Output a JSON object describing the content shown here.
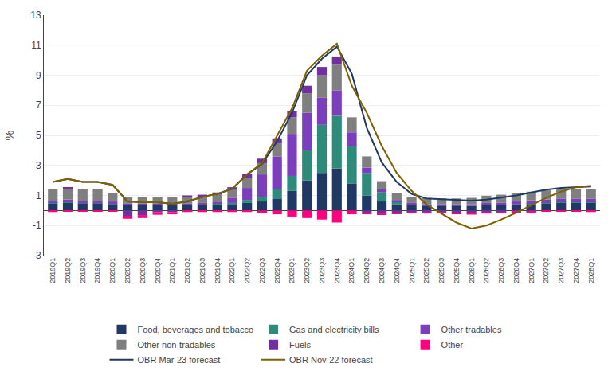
{
  "chart_data": {
    "type": "bar",
    "stacked": true,
    "ylabel": "%",
    "categories": [
      "2019Q1",
      "2019Q2",
      "2019Q3",
      "2019Q4",
      "2020Q1",
      "2020Q2",
      "2020Q3",
      "2020Q4",
      "2021Q1",
      "2021Q2",
      "2021Q3",
      "2021Q4",
      "2022Q1",
      "2022Q2",
      "2022Q3",
      "2022Q4",
      "2023Q1",
      "2023Q2",
      "2023Q3",
      "2023Q4",
      "2024Q1",
      "2024Q2",
      "2024Q3",
      "2024Q4",
      "2025Q1",
      "2025Q2",
      "2025Q3",
      "2025Q4",
      "2026Q1",
      "2026Q2",
      "2026Q3",
      "2026Q4",
      "2027Q1",
      "2027Q2",
      "2027Q3",
      "2027Q4",
      "2028Q1"
    ],
    "series": [
      {
        "name": "Food, beverages and tobacco",
        "type": "bar",
        "color": "#1f3864",
        "values": [
          0.45,
          0.5,
          0.45,
          0.45,
          0.4,
          0.35,
          0.35,
          0.35,
          0.35,
          0.35,
          0.35,
          0.35,
          0.4,
          0.5,
          0.6,
          0.8,
          1.3,
          2.0,
          2.5,
          2.8,
          1.8,
          1.0,
          0.6,
          0.4,
          0.35,
          0.3,
          0.3,
          0.3,
          0.3,
          0.35,
          0.35,
          0.4,
          0.4,
          0.45,
          0.5,
          0.5,
          0.5
        ]
      },
      {
        "name": "Gas and electricity bills",
        "type": "bar",
        "color": "#2e8b7a",
        "values": [
          0.05,
          0.05,
          0.02,
          0.02,
          0.02,
          0.0,
          0.0,
          0.0,
          0.0,
          0.0,
          0.05,
          0.1,
          0.1,
          0.2,
          0.3,
          0.6,
          1.0,
          2.0,
          3.2,
          3.5,
          2.5,
          1.5,
          0.6,
          0.2,
          0.05,
          0.02,
          0.0,
          0.0,
          0.0,
          0.0,
          0.0,
          0.0,
          0.05,
          0.05,
          0.05,
          0.05,
          0.05
        ]
      },
      {
        "name": "Other tradables",
        "type": "bar",
        "color": "#7b3fbe",
        "values": [
          0.15,
          0.18,
          0.18,
          0.18,
          0.18,
          0.1,
          0.1,
          0.1,
          0.1,
          0.1,
          0.1,
          0.1,
          0.35,
          0.8,
          1.5,
          2.2,
          2.8,
          2.5,
          1.8,
          1.7,
          0.9,
          0.35,
          0.2,
          0.1,
          0.1,
          0.1,
          0.1,
          0.1,
          0.12,
          0.15,
          0.18,
          0.2,
          0.22,
          0.22,
          0.22,
          0.22,
          0.22
        ]
      },
      {
        "name": "Other non-tradables",
        "type": "bar",
        "color": "#7f7f7f",
        "values": [
          0.75,
          0.75,
          0.75,
          0.75,
          0.55,
          0.45,
          0.45,
          0.45,
          0.45,
          0.45,
          0.45,
          0.55,
          0.55,
          0.65,
          0.75,
          0.9,
          1.1,
          1.3,
          1.5,
          1.7,
          1.0,
          0.75,
          0.55,
          0.45,
          0.42,
          0.4,
          0.4,
          0.4,
          0.42,
          0.48,
          0.52,
          0.55,
          0.58,
          0.62,
          0.65,
          0.65,
          0.65
        ]
      },
      {
        "name": "Fuels",
        "type": "bar",
        "color": "#7030a0",
        "values": [
          0.05,
          0.08,
          0.05,
          0.05,
          0.0,
          -0.35,
          -0.3,
          -0.1,
          -0.1,
          0.1,
          0.1,
          0.1,
          0.15,
          0.3,
          0.3,
          0.3,
          0.4,
          0.5,
          0.55,
          0.55,
          0.0,
          -0.15,
          -0.2,
          -0.15,
          -0.1,
          -0.1,
          -0.1,
          -0.15,
          -0.15,
          -0.1,
          -0.1,
          -0.08,
          -0.08,
          0.0,
          0.0,
          0.0,
          0.0
        ]
      },
      {
        "name": "Other",
        "type": "bar",
        "color": "#ff007f",
        "values": [
          -0.1,
          -0.08,
          -0.05,
          -0.05,
          -0.08,
          -0.2,
          -0.2,
          -0.18,
          -0.15,
          -0.1,
          -0.1,
          -0.1,
          -0.1,
          -0.1,
          -0.15,
          -0.25,
          -0.4,
          -0.5,
          -0.6,
          -0.8,
          -0.25,
          -0.1,
          -0.05,
          -0.05,
          -0.05,
          -0.1,
          -0.08,
          -0.1,
          -0.12,
          -0.1,
          -0.08,
          -0.08,
          -0.08,
          -0.08,
          -0.08,
          -0.08,
          -0.1
        ]
      },
      {
        "name": "OBR Mar-23 forecast",
        "type": "line",
        "color": "#1f3864",
        "values": [
          1.9,
          2.1,
          1.9,
          1.9,
          1.7,
          0.6,
          0.55,
          0.55,
          0.45,
          0.6,
          0.9,
          1.1,
          1.45,
          2.4,
          3.1,
          4.6,
          6.5,
          9.0,
          10.1,
          10.9,
          9.1,
          5.5,
          3.2,
          1.9,
          1.1,
          0.8,
          0.75,
          0.7,
          0.65,
          0.72,
          0.85,
          1.0,
          1.2,
          1.38,
          1.5,
          1.55,
          1.6
        ]
      },
      {
        "name": "OBR Nov-22 forecast",
        "type": "line",
        "color": "#7f6000",
        "values": [
          1.9,
          2.1,
          1.9,
          1.9,
          1.7,
          0.6,
          0.55,
          0.55,
          0.45,
          0.6,
          0.9,
          1.1,
          1.45,
          2.4,
          3.15,
          5.0,
          6.8,
          9.3,
          10.3,
          11.1,
          8.3,
          6.5,
          4.3,
          2.5,
          1.3,
          0.4,
          -0.2,
          -0.8,
          -1.2,
          -1.0,
          -0.6,
          -0.15,
          0.35,
          0.85,
          1.25,
          1.55,
          1.65
        ]
      }
    ],
    "ylim": [
      -3,
      13
    ],
    "yticks": [
      -3,
      -1,
      1,
      3,
      5,
      7,
      9,
      11,
      13
    ],
    "grid": true,
    "legend": "bottom"
  }
}
